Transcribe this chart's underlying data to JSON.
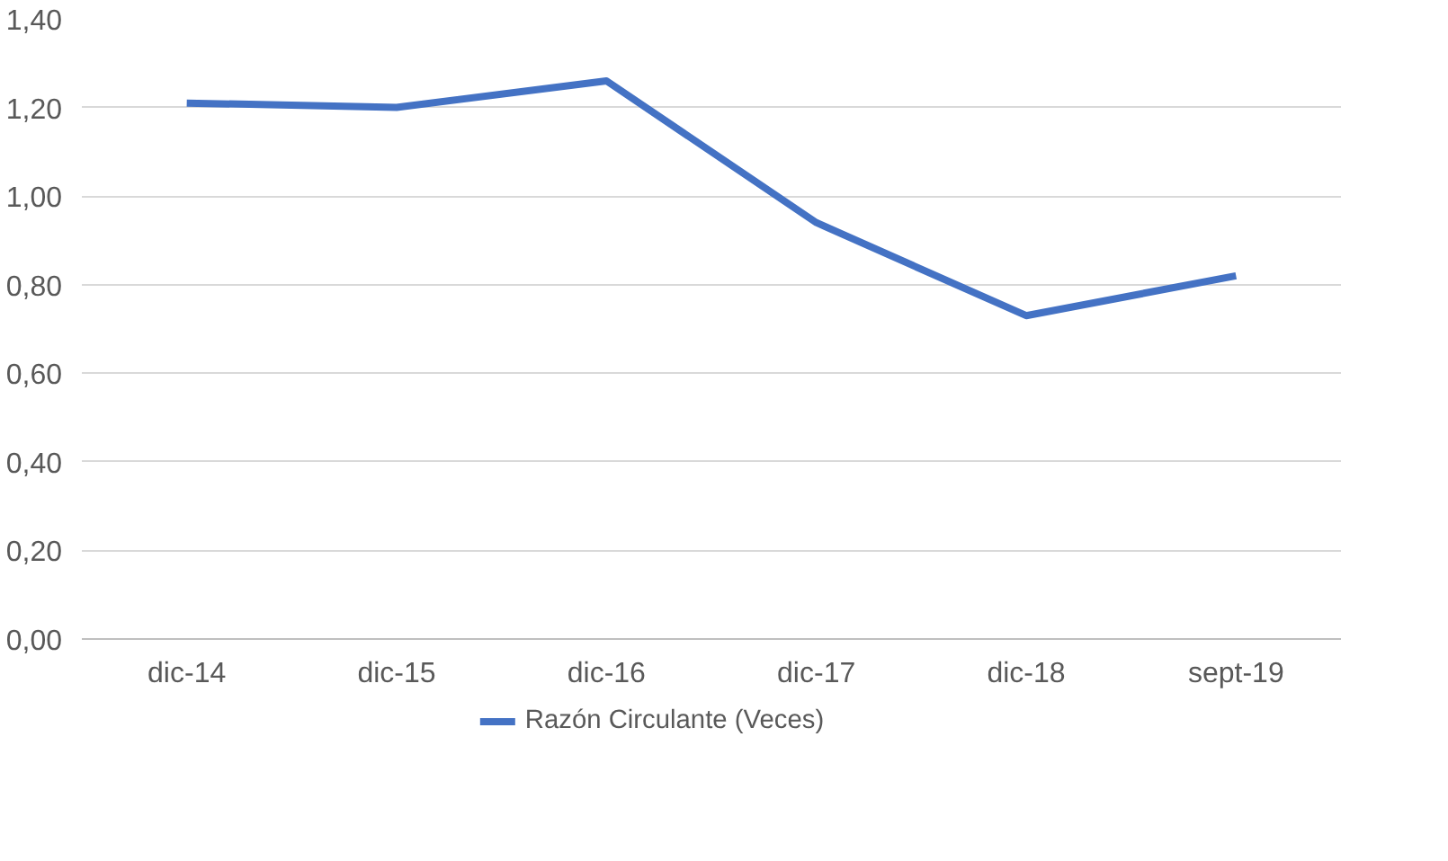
{
  "chart_data": {
    "type": "line",
    "categories": [
      "dic-14",
      "dic-15",
      "dic-16",
      "dic-17",
      "dic-18",
      "sept-19"
    ],
    "series": [
      {
        "name": "Razón Circulante (Veces)",
        "color": "#4472c4",
        "values": [
          1.21,
          1.2,
          1.26,
          0.94,
          0.73,
          0.82
        ]
      }
    ],
    "ylim": [
      0,
      1.4
    ],
    "yticks": [
      {
        "value": 0,
        "label": "0,00"
      },
      {
        "value": 0.2,
        "label": "0,20"
      },
      {
        "value": 0.4,
        "label": "0,40"
      },
      {
        "value": 0.6,
        "label": "0,60"
      },
      {
        "value": 0.8,
        "label": "0,80"
      },
      {
        "value": 1.0,
        "label": "1,00"
      },
      {
        "value": 1.2,
        "label": "1,20"
      },
      {
        "value": 1.4,
        "label": "1,40"
      }
    ],
    "grid": "y",
    "legend": "bottom",
    "marker": "none",
    "line_style": "solid"
  }
}
